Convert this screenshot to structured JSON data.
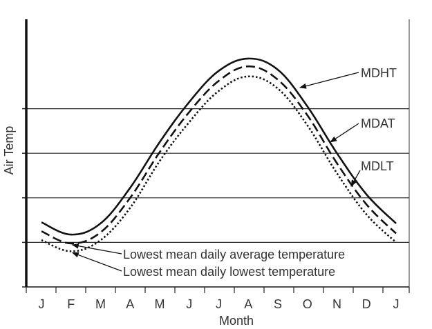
{
  "chart_data": {
    "type": "line",
    "title": "",
    "xlabel": "Month",
    "ylabel": "Air Temp",
    "categories": [
      "J",
      "F",
      "M",
      "A",
      "M",
      "J",
      "J",
      "A",
      "S",
      "O",
      "N",
      "D",
      "J"
    ],
    "ylim": [
      0,
      10
    ],
    "y_gridlines": [
      2,
      4,
      6,
      8
    ],
    "grid": true,
    "series": [
      {
        "name": "MDHT",
        "style": "solid",
        "values": [
          2.9,
          2.35,
          2.85,
          4.45,
          6.5,
          8.3,
          9.7,
          10.25,
          9.75,
          8.1,
          6.0,
          4.15,
          2.85
        ]
      },
      {
        "name": "MDAT",
        "style": "dashed",
        "values": [
          2.5,
          1.95,
          2.45,
          4.0,
          6.05,
          7.85,
          9.25,
          9.9,
          9.3,
          7.7,
          5.55,
          3.7,
          2.4
        ]
      },
      {
        "name": "MDLT",
        "style": "dotted",
        "values": [
          2.1,
          1.6,
          2.1,
          3.55,
          5.65,
          7.4,
          8.8,
          9.45,
          8.9,
          7.25,
          5.1,
          3.25,
          2.0
        ]
      }
    ],
    "series_labels": [
      "MDHT",
      "MDAT",
      "MDLT"
    ],
    "annotations": [
      {
        "text": "Lowest mean daily average temperature",
        "series": "MDAT",
        "index": 1
      },
      {
        "text": "Lowest mean daily lowest temperature",
        "series": "MDLT",
        "index": 1
      }
    ]
  }
}
